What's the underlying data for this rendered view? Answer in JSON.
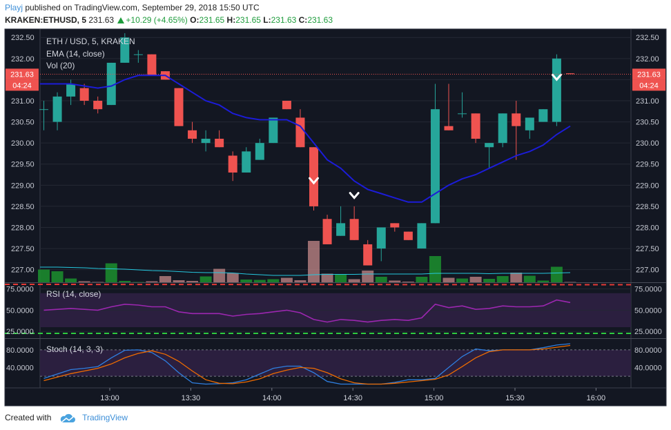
{
  "header": {
    "user": "Playj",
    "published_text": " published on TradingView.com, September 29, 2018 15:50 UTC",
    "symbol": "KRAKEN:ETHUSD, 5",
    "price": "231.63",
    "change": "+10.29 (+4.65%)",
    "o_label": "O:",
    "o_value": "231.65",
    "h_label": "H:",
    "h_value": "231.65",
    "l_label": "L:",
    "l_value": "231.63",
    "c_label": "C:",
    "c_value": "231.63"
  },
  "footer": {
    "created_with": "Created with",
    "brand": "TradingView"
  },
  "colors": {
    "background": "#131722",
    "bull": "#26a69a",
    "bear": "#ef5350",
    "ema": "#1c1cd8",
    "vol_ma": "#25c9e0",
    "rsi": "#9c27b0",
    "stoch_k": "#2f7fe0",
    "stoch_d": "#ef6c00",
    "rsi_band": "#2b1f3f"
  },
  "chart_data": [
    {
      "type": "candlestick",
      "title": "ETH / USD, 5, KRAKEN",
      "indicators": [
        "EMA (14, close)",
        "Vol (20)"
      ],
      "x_ticks": [
        "13:00",
        "13:30",
        "14:00",
        "14:30",
        "15:00",
        "15:30",
        "16:00"
      ],
      "y_ticks": [
        "227.00",
        "227.50",
        "228.00",
        "228.50",
        "229.00",
        "229.50",
        "230.00",
        "230.50",
        "231.00",
        "231.50",
        "232.00",
        "232.50"
      ],
      "ylim": [
        226.7,
        232.7
      ],
      "last_price_label": "231.63",
      "countdown_label": "04:24",
      "candles": [
        {
          "o": 230.8,
          "h": 231.0,
          "l": 230.3,
          "c": 230.8
        },
        {
          "o": 230.5,
          "h": 231.2,
          "l": 230.3,
          "c": 231.1
        },
        {
          "o": 231.1,
          "h": 231.5,
          "l": 230.9,
          "c": 231.4
        },
        {
          "o": 231.3,
          "h": 231.4,
          "l": 230.9,
          "c": 231.0
        },
        {
          "o": 231.0,
          "h": 231.1,
          "l": 230.7,
          "c": 230.8
        },
        {
          "o": 230.9,
          "h": 231.9,
          "l": 230.9,
          "c": 231.9
        },
        {
          "o": 231.9,
          "h": 232.6,
          "l": 231.9,
          "c": 232.5
        },
        {
          "o": 232.1,
          "h": 232.2,
          "l": 231.9,
          "c": 232.1
        },
        {
          "o": 232.1,
          "h": 232.1,
          "l": 231.6,
          "c": 231.6
        },
        {
          "o": 231.7,
          "h": 231.7,
          "l": 231.5,
          "c": 231.5
        },
        {
          "o": 231.3,
          "h": 231.3,
          "l": 230.4,
          "c": 230.4
        },
        {
          "o": 230.3,
          "h": 230.5,
          "l": 230.0,
          "c": 230.1
        },
        {
          "o": 230.0,
          "h": 230.3,
          "l": 229.8,
          "c": 230.1
        },
        {
          "o": 230.1,
          "h": 230.3,
          "l": 229.9,
          "c": 229.9
        },
        {
          "o": 229.7,
          "h": 229.8,
          "l": 229.1,
          "c": 229.3
        },
        {
          "o": 229.3,
          "h": 229.9,
          "l": 229.3,
          "c": 229.8
        },
        {
          "o": 229.6,
          "h": 230.1,
          "l": 229.6,
          "c": 230.0
        },
        {
          "o": 230.0,
          "h": 230.6,
          "l": 230.0,
          "c": 230.6
        },
        {
          "o": 231.0,
          "h": 231.0,
          "l": 230.8,
          "c": 230.8
        },
        {
          "o": 230.6,
          "h": 230.8,
          "l": 229.9,
          "c": 229.9
        },
        {
          "o": 229.9,
          "h": 229.9,
          "l": 228.4,
          "c": 228.5
        },
        {
          "o": 228.2,
          "h": 228.3,
          "l": 227.6,
          "c": 227.6
        },
        {
          "o": 227.8,
          "h": 228.5,
          "l": 227.8,
          "c": 228.1
        },
        {
          "o": 228.2,
          "h": 228.5,
          "l": 227.7,
          "c": 227.7
        },
        {
          "o": 227.6,
          "h": 227.7,
          "l": 227.1,
          "c": 227.1
        },
        {
          "o": 227.5,
          "h": 228.0,
          "l": 227.2,
          "c": 228.0
        },
        {
          "o": 228.1,
          "h": 228.1,
          "l": 227.9,
          "c": 228.0
        },
        {
          "o": 227.9,
          "h": 227.9,
          "l": 227.7,
          "c": 227.7
        },
        {
          "o": 227.5,
          "h": 228.1,
          "l": 227.5,
          "c": 228.1
        },
        {
          "o": 228.1,
          "h": 231.4,
          "l": 228.1,
          "c": 230.8
        },
        {
          "o": 230.4,
          "h": 231.4,
          "l": 230.3,
          "c": 230.3
        },
        {
          "o": 230.7,
          "h": 231.2,
          "l": 230.6,
          "c": 230.7
        },
        {
          "o": 230.7,
          "h": 230.7,
          "l": 230.0,
          "c": 230.1
        },
        {
          "o": 229.9,
          "h": 230.0,
          "l": 229.4,
          "c": 230.0
        },
        {
          "o": 230.0,
          "h": 230.7,
          "l": 229.9,
          "c": 230.7
        },
        {
          "o": 230.7,
          "h": 231.0,
          "l": 229.6,
          "c": 230.4
        },
        {
          "o": 230.3,
          "h": 230.6,
          "l": 230.1,
          "c": 230.6
        },
        {
          "o": 230.5,
          "h": 230.8,
          "l": 230.5,
          "c": 230.8
        },
        {
          "o": 230.5,
          "h": 232.1,
          "l": 230.4,
          "c": 232.0
        },
        {
          "o": 231.65,
          "h": 231.65,
          "l": 231.63,
          "c": 231.63
        }
      ],
      "ema": [
        231.4,
        231.4,
        231.4,
        231.35,
        231.3,
        231.35,
        231.5,
        231.6,
        231.6,
        231.6,
        231.4,
        231.2,
        231.0,
        230.9,
        230.7,
        230.6,
        230.55,
        230.55,
        230.55,
        230.4,
        230.0,
        229.6,
        229.4,
        229.1,
        228.9,
        228.8,
        228.7,
        228.6,
        228.6,
        228.8,
        229.0,
        229.15,
        229.25,
        229.4,
        229.55,
        229.7,
        229.8,
        229.95,
        230.2,
        230.4
      ],
      "volume": [
        3.7,
        3.2,
        1.1,
        0.3,
        0.1,
        5.5,
        0.4,
        0.1,
        0.3,
        1.8,
        0.6,
        0.4,
        1.7,
        3.9,
        2.7,
        0.8,
        0.7,
        0.9,
        1.3,
        0.6,
        12,
        2.5,
        2.4,
        0.9,
        3.4,
        1.6,
        0.5,
        0.2,
        1.6,
        7.6,
        1.3,
        1.1,
        1.6,
        1.0,
        1.8,
        2.8,
        1.9,
        0.5,
        4.5,
        0.1
      ],
      "volume_ma": [
        4.4,
        4.4,
        4.3,
        4.2,
        4.0,
        3.9,
        3.8,
        3.6,
        3.4,
        3.3,
        3.1,
        2.9,
        2.8,
        2.8,
        2.7,
        2.4,
        2.2,
        2.0,
        2.0,
        2.0,
        2.2,
        2.3,
        2.3,
        2.3,
        2.4,
        2.4,
        2.4,
        2.4,
        2.4,
        2.6,
        2.6,
        2.6,
        2.6,
        2.5,
        2.6,
        2.6,
        2.6,
        2.6,
        2.7,
        2.8
      ],
      "markers": [
        {
          "index": 20,
          "type": "down",
          "value": 229.1
        },
        {
          "index": 23,
          "type": "down",
          "value": 228.75
        },
        {
          "index": 38,
          "type": "down",
          "value": 231.55
        }
      ]
    },
    {
      "type": "line",
      "title": "RSI (14, close)",
      "y_ticks": [
        "25.0000",
        "50.0000",
        "75.0000"
      ],
      "ylim": [
        17,
        82
      ],
      "upper_band": 70,
      "lower_band": 30,
      "values": [
        50,
        51,
        52,
        51,
        50,
        54,
        57,
        56,
        54,
        54,
        48,
        46,
        46,
        46,
        43,
        45,
        46,
        48,
        50,
        47,
        39,
        36,
        39,
        38,
        36,
        38,
        39,
        38,
        41,
        57,
        53,
        55,
        51,
        52,
        55,
        54,
        54,
        55,
        62,
        59
      ]
    },
    {
      "type": "line",
      "title": "Stoch (14, 3, 3)",
      "y_ticks": [
        "40.0000",
        "80.0000"
      ],
      "ylim": [
        -5,
        105
      ],
      "upper_band": 80,
      "lower_band": 20,
      "k": [
        15,
        25,
        35,
        38,
        42,
        62,
        79,
        80,
        74,
        55,
        28,
        5,
        2,
        3,
        5,
        12,
        25,
        38,
        43,
        43,
        28,
        8,
        2,
        2,
        2,
        2,
        6,
        12,
        12,
        15,
        40,
        65,
        82,
        78,
        80,
        80,
        80,
        85,
        91,
        94
      ],
      "d": [
        10,
        18,
        26,
        32,
        38,
        48,
        62,
        72,
        78,
        70,
        54,
        32,
        12,
        4,
        3,
        7,
        14,
        26,
        34,
        40,
        38,
        28,
        14,
        5,
        2,
        2,
        4,
        7,
        10,
        13,
        23,
        42,
        62,
        76,
        80,
        80,
        80,
        82,
        86,
        90
      ]
    }
  ]
}
